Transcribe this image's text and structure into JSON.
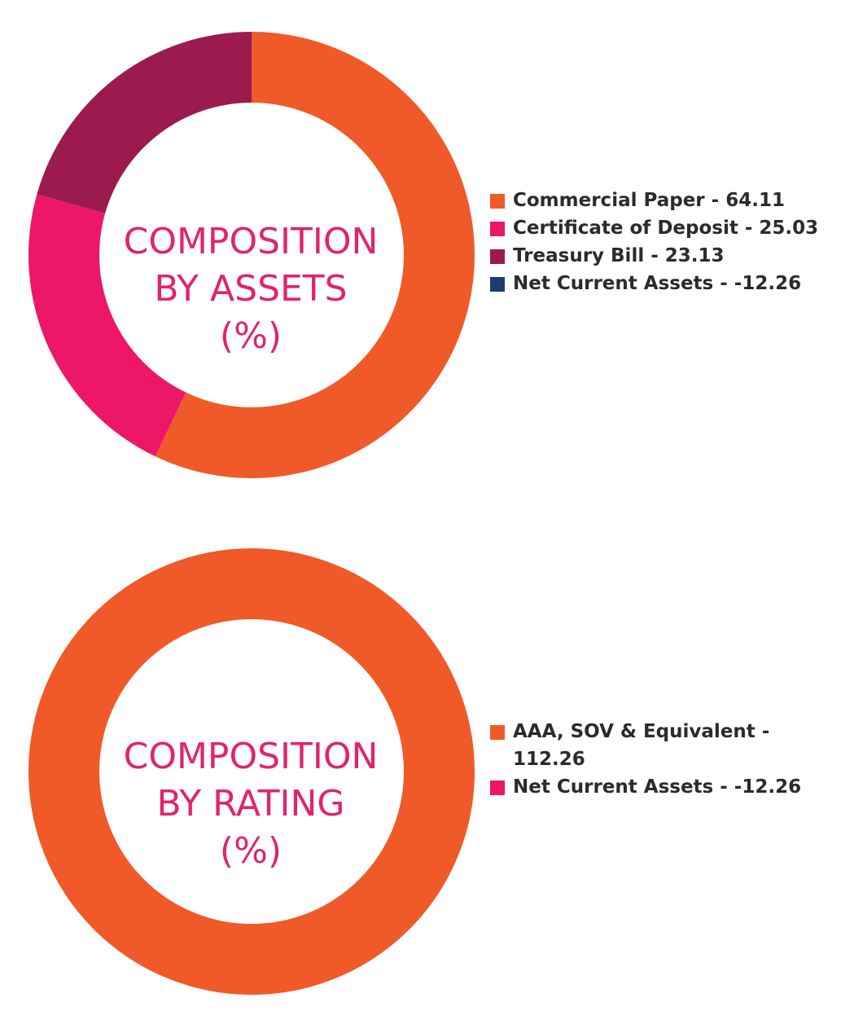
{
  "chart_data": [
    {
      "type": "pie",
      "title": "COMPOSITION BY ASSETS (%)",
      "title_lines": [
        "COMPOSITION",
        "BY ASSETS",
        "(%)"
      ],
      "legend_position": "right",
      "series": [
        {
          "label": "Commercial Paper - 64.11",
          "value": 64.11,
          "color": "#f05a28"
        },
        {
          "label": "Certificate of Deposit - 25.03",
          "value": 25.03,
          "color": "#ec1766"
        },
        {
          "label": "Treasury Bill - 23.13",
          "value": 23.13,
          "color": "#9b1b4f"
        },
        {
          "label": "Net Current Assets - -12.26",
          "value": -12.26,
          "color": "#1f3a6e"
        }
      ]
    },
    {
      "type": "pie",
      "title": "COMPOSITION BY RATING (%)",
      "title_lines": [
        "COMPOSITION",
        "BY RATING",
        "(%)"
      ],
      "legend_position": "right",
      "series": [
        {
          "label": "AAA, SOV & Equivalent - 112.26",
          "label_lines": [
            "AAA, SOV & Equivalent -",
            "112.26"
          ],
          "value": 112.26,
          "color": "#f05a28"
        },
        {
          "label": "Net Current Assets - -12.26",
          "value": -12.26,
          "color": "#ec1766"
        }
      ]
    }
  ]
}
